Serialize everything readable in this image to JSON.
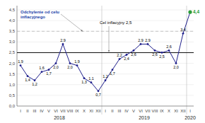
{
  "chart_data": {
    "type": "line",
    "categories": [
      "I",
      "II",
      "III",
      "IV",
      "V",
      "VI",
      "VII",
      "VIII",
      "IX",
      "X",
      "XI",
      "XII",
      "I",
      "II",
      "III",
      "IV",
      "V",
      "VI",
      "VII",
      "VIII",
      "IX",
      "X",
      "XI",
      "XII",
      "I"
    ],
    "groups": [
      {
        "label": "2018",
        "size": 12
      },
      {
        "label": "2019",
        "size": 12
      },
      {
        "label": "2020",
        "size": 1
      }
    ],
    "series": [
      {
        "values": [
          1.9,
          1.4,
          1.2,
          1.6,
          1.7,
          2.0,
          2.9,
          2.0,
          1.9,
          1.3,
          1.1,
          0.7,
          1.2,
          1.7,
          2.2,
          2.4,
          2.6,
          2.9,
          2.9,
          2.6,
          2.5,
          2.6,
          2.0,
          3.4,
          4.4
        ],
        "value_labels": [
          "1,9",
          "1,4",
          "1,2",
          "1,6",
          "1,7",
          "2,0",
          "2,9",
          "2,0",
          "1,9",
          "1,3",
          "1,1",
          "0,7",
          "1,2",
          "1,7",
          "2,2",
          "2,4",
          "2,6",
          "2,9",
          "2,9",
          "2,6",
          "2,5",
          "2,6",
          "2,0",
          "3,4",
          "4,4"
        ],
        "color": "#1f1f8c",
        "colors": [
          "#1f1f8c",
          "#1f1f8c",
          "#1f1f8c",
          "#1f1f8c",
          "#1f1f8c",
          "#1f1f8c",
          "#1f1f8c",
          "#1f1f8c",
          "#1f1f8c",
          "#1f1f8c",
          "#1f1f8c",
          "#1f1f8c",
          "#1f1f8c",
          "#1f1f8c",
          "#1f1f8c",
          "#1f1f8c",
          "#1f1f8c",
          "#1f1f8c",
          "#1f1f8c",
          "#1f1f8c",
          "#1f1f8c",
          "#1f1f8c",
          "#1f1f8c",
          "#1f1f8c",
          "#2a9d3a"
        ],
        "marker": "circle"
      }
    ],
    "data_labels": true,
    "reference_lines": [
      {
        "value": 2.5,
        "label": "Cel inflacyjny 2,5",
        "color": "#111111",
        "line_style": "solid"
      },
      {
        "value": 3.5,
        "label": "Odchylenie od celu\ninflacyjnego",
        "color": "#b0b0b0",
        "line_style": "dashed"
      }
    ],
    "ylim": [
      0.0,
      4.7
    ],
    "yticks": [
      {
        "value": 0.0,
        "label": "0,0"
      },
      {
        "value": 0.5,
        "label": "0,5"
      },
      {
        "value": 1.0,
        "label": "1,0"
      },
      {
        "value": 1.5,
        "label": "1,5"
      },
      {
        "value": 2.0,
        "label": "2,0"
      },
      {
        "value": 2.5,
        "label": "2,5"
      },
      {
        "value": 3.0,
        "label": "3,0"
      },
      {
        "value": 3.5,
        "label": "3,5"
      },
      {
        "value": 4.0,
        "label": "4,0"
      },
      {
        "value": 4.5,
        "label": "4,5"
      }
    ],
    "grid": true
  }
}
